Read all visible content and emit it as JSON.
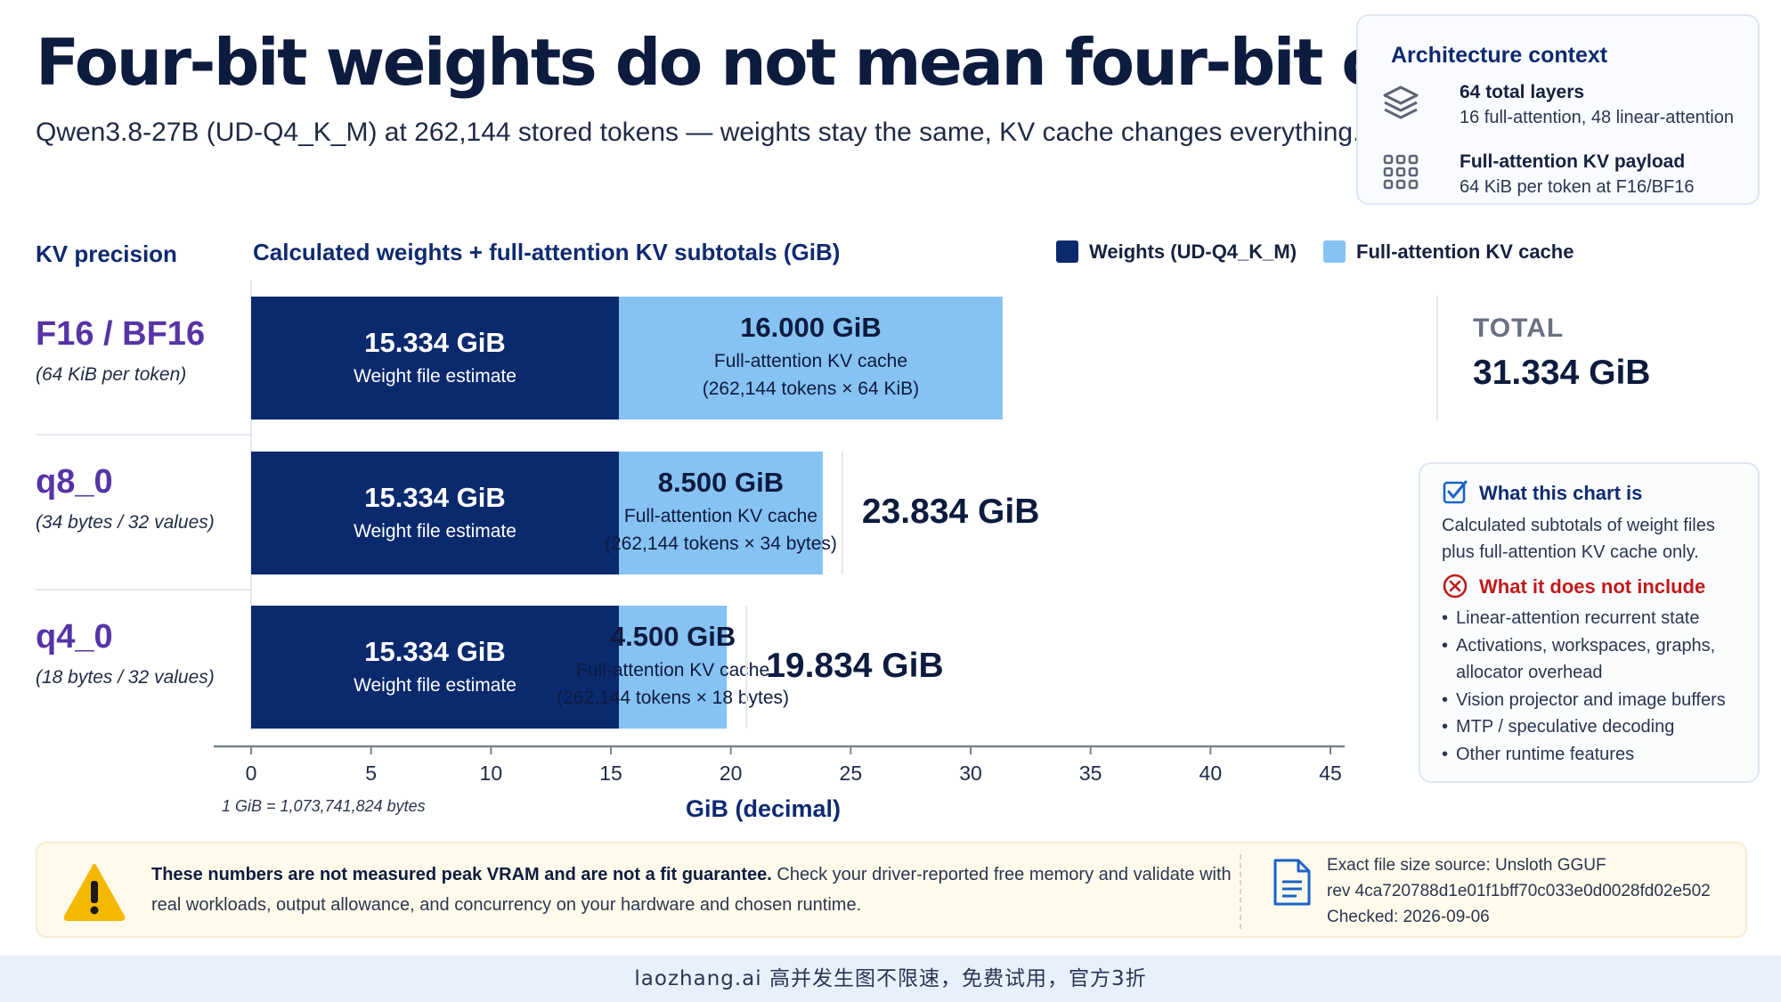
{
  "header": {
    "title": "Four-bit weights do not mean four-bit cache.",
    "subtitle": "Qwen3.8-27B (UD-Q4_K_M) at 262,144 stored tokens — weights stay the same, KV cache changes everything."
  },
  "architecture": {
    "title": "Architecture context",
    "items": [
      {
        "icon": "layers-icon",
        "title": "64 total layers",
        "detail": "16 full-attention, 48 linear-attention"
      },
      {
        "icon": "grid-dots-icon",
        "title": "Full-attention KV payload",
        "detail": "64 KiB per token at F16/BF16"
      }
    ]
  },
  "columns": {
    "precision_header": "KV precision",
    "chart_header": "Calculated weights + full-attention KV subtotals (GiB)"
  },
  "rows": [
    {
      "name": "F16 / BF16",
      "desc": "(64 KiB per token)"
    },
    {
      "name": "q8_0",
      "desc": "(34 bytes / 32 values)"
    },
    {
      "name": "q4_0",
      "desc": "(18 bytes / 32 values)"
    }
  ],
  "total_header": "TOTAL",
  "chart_data": {
    "type": "bar",
    "orientation": "horizontal",
    "stacked": true,
    "title": "Calculated weights + full-attention KV subtotals (GiB)",
    "xlabel": "GiB (decimal)",
    "xlim": [
      0,
      45
    ],
    "xticks": [
      0,
      5,
      10,
      15,
      20,
      25,
      30,
      35,
      40,
      45
    ],
    "axis_note": "1 GiB = 1,073,741,824 bytes",
    "legend_position": "top-right",
    "categories": [
      "F16 / BF16",
      "q8_0",
      "q4_0"
    ],
    "series": [
      {
        "name": "Weights (UD-Q4_K_M)",
        "color": "#0b2a6e",
        "values": [
          15.334,
          15.334,
          15.334
        ],
        "value_labels": [
          "15.334 GiB",
          "15.334 GiB",
          "15.334 GiB"
        ],
        "sub_labels": [
          [
            "Weight file estimate"
          ],
          [
            "Weight file estimate"
          ],
          [
            "Weight file estimate"
          ]
        ]
      },
      {
        "name": "Full-attention KV cache",
        "color": "#86c2f2",
        "values": [
          16.0,
          8.5,
          4.5
        ],
        "value_labels": [
          "16.000 GiB",
          "8.500 GiB",
          "4.500 GiB"
        ],
        "sub_labels": [
          [
            "Full-attention KV cache",
            "(262,144 tokens × 64 KiB)"
          ],
          [
            "Full-attention KV cache",
            "(262,144 tokens × 34 bytes)"
          ],
          [
            "Full-attention KV cache",
            "(262,144 tokens × 18 bytes)"
          ]
        ]
      }
    ],
    "totals": [
      31.334,
      23.834,
      19.834
    ],
    "total_labels": [
      "31.334 GiB",
      "23.834 GiB",
      "19.834 GiB"
    ]
  },
  "info": {
    "includes_title": "What this chart is",
    "includes_text": "Calculated subtotals of weight files plus full-attention KV cache only.",
    "excludes_title": "What it does not include",
    "excludes": [
      "Linear-attention recurrent state",
      "Activations, workspaces, graphs, allocator overhead",
      "Vision projector and image buffers",
      "MTP / speculative decoding",
      "Other runtime features"
    ]
  },
  "note": {
    "bold": "These numbers are not measured peak VRAM and are not a fit guarantee.",
    "text": " Check your driver-reported free memory and validate with real workloads, output allowance, and concurrency on your hardware and chosen runtime.",
    "source_lines": [
      "Exact file size source: Unsloth GGUF",
      "rev 4ca720788d1e01f1bff70c033e0d0028fd02e502",
      "Checked: 2026-09-06"
    ]
  },
  "banner": "laozhang.ai 高并发生图不限速，免费试用，官方3折",
  "colors": {
    "title": "#0d1b3f",
    "accent": "#0f2a70",
    "row_label": "#5634a6",
    "warning": "#c01a1a",
    "warning_icon": "#f5b800"
  }
}
